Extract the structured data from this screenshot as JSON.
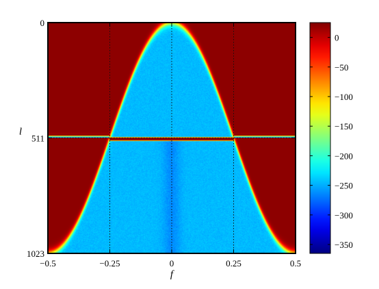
{
  "chart_data": {
    "type": "heatmap",
    "title": "",
    "xlabel": "f",
    "ylabel": "l",
    "xlim": [
      -0.5,
      0.5
    ],
    "ylim": [
      0,
      1023
    ],
    "y_direction": "top-to-bottom",
    "x_ticks": [
      -0.5,
      -0.25,
      0,
      0.25,
      0.5
    ],
    "x_tick_labels": [
      "−0.5",
      "−0.25",
      "0",
      "0.25",
      "0.5"
    ],
    "y_ticks": [
      0,
      511,
      1023
    ],
    "y_tick_labels": [
      "0",
      "511",
      "1023"
    ],
    "grid": false,
    "guide_lines_x": [
      -0.25,
      0,
      0.25
    ],
    "guide_line_y": 511,
    "colorbar": {
      "position": "right",
      "colormap": "jet",
      "range": [
        -365,
        25
      ],
      "ticks": [
        0,
        -50,
        -100,
        -150,
        -200,
        -250,
        -300,
        -350
      ],
      "tick_labels": [
        "0",
        "−50",
        "−100",
        "−150",
        "−200",
        "−250",
        "−300",
        "−350"
      ]
    },
    "regions": {
      "high_value": 20,
      "background_value": -245,
      "upper_region": "high where l < 511·(1 − cos 2πf)",
      "lower_region": "high where l > 511 and 0.25 < |f| < 0.5, bounded by l < 511·(1 − cos 2πf)",
      "transition_band_at_l": 511
    }
  }
}
